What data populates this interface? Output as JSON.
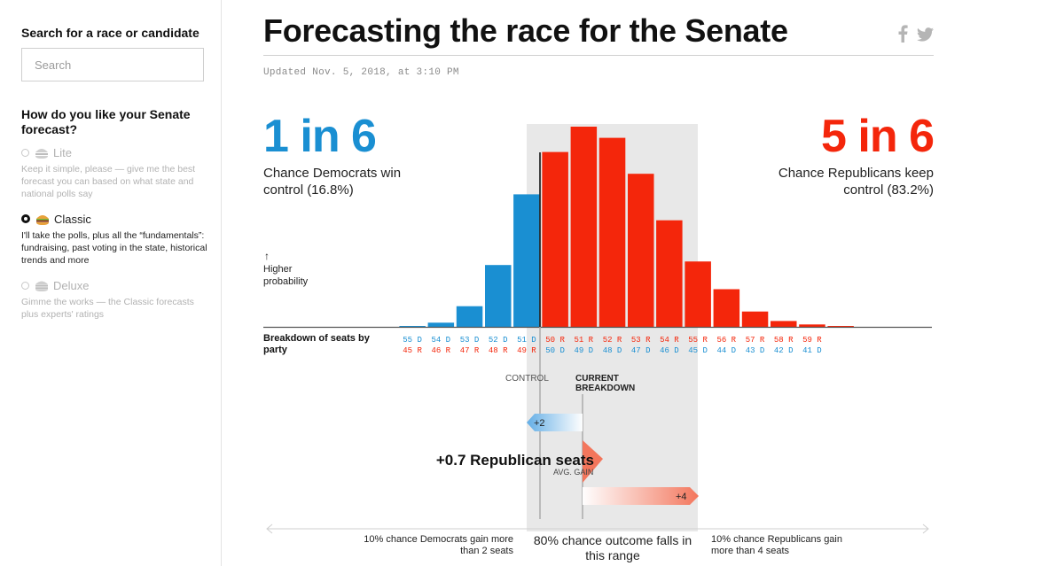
{
  "sidebar": {
    "search_title": "Search for a race or candidate",
    "search_placeholder": "Search",
    "mode_question": "How do you like your Senate forecast?",
    "options": [
      {
        "name": "Lite",
        "desc": "Keep it simple, please — give me the best forecast you can based on what state and national polls say",
        "selected": false,
        "icon": "burger-lite-icon"
      },
      {
        "name": "Classic",
        "desc": "I'll take the polls, plus all the “fundamentals”: fundraising, past voting in the state, historical trends and more",
        "selected": true,
        "icon": "burger-classic-icon"
      },
      {
        "name": "Deluxe",
        "desc": "Gimme the works — the Classic forecasts plus experts' ratings",
        "selected": false,
        "icon": "burger-deluxe-icon"
      }
    ]
  },
  "header": {
    "title": "Forecasting the race for the Senate",
    "updated": "Updated Nov. 5, 2018, at 3:10 PM",
    "share_icons": [
      "facebook-icon",
      "twitter-icon"
    ]
  },
  "odds": {
    "dem_headline": "1 in 6",
    "dem_text": "Chance Democrats win control (16.8%)",
    "rep_headline": "5 in 6",
    "rep_text": "Chance Republicans keep control (83.2%)"
  },
  "colors": {
    "democrat": "#1a8fd2",
    "republican": "#f4260b",
    "range_band": "#e8e8e8"
  },
  "chart_labels": {
    "prob_arrow": "↑",
    "prob_label": "Higher probability",
    "breakdown_label": "Breakdown of seats by party",
    "control": "CONTROL",
    "current_line1": "CURRENT",
    "current_line2": "BREAKDOWN",
    "dem_gain_label": "+2",
    "rep_gain_label": "+4",
    "avg_gain_headline": "+0.7 Republican seats",
    "avg_gain_sub": "AVG. GAIN"
  },
  "range": {
    "left": "10% chance Democrats gain more than 2 seats",
    "center": "80% chance outcome falls in this range",
    "right": "10% chance Republicans gain more than 4 seats"
  },
  "chart_data": {
    "type": "bar",
    "title": "Breakdown of seats by party",
    "ylabel": "Higher probability",
    "categories": [
      {
        "top": "55 D",
        "bottom": "45 R",
        "party": "D"
      },
      {
        "top": "54 D",
        "bottom": "46 R",
        "party": "D"
      },
      {
        "top": "53 D",
        "bottom": "47 R",
        "party": "D"
      },
      {
        "top": "52 D",
        "bottom": "48 R",
        "party": "D"
      },
      {
        "top": "51 D",
        "bottom": "49 R",
        "party": "D"
      },
      {
        "top": "50 R",
        "bottom": "50 D",
        "party": "R"
      },
      {
        "top": "51 R",
        "bottom": "49 D",
        "party": "R"
      },
      {
        "top": "52 R",
        "bottom": "48 D",
        "party": "R"
      },
      {
        "top": "53 R",
        "bottom": "47 D",
        "party": "R"
      },
      {
        "top": "54 R",
        "bottom": "46 D",
        "party": "R"
      },
      {
        "top": "55 R",
        "bottom": "45 D",
        "party": "R"
      },
      {
        "top": "56 R",
        "bottom": "44 D",
        "party": "R"
      },
      {
        "top": "57 R",
        "bottom": "43 D",
        "party": "R"
      },
      {
        "top": "58 R",
        "bottom": "42 D",
        "party": "R"
      },
      {
        "top": "59 R",
        "bottom": "41 D",
        "party": "R"
      },
      {
        "top": "",
        "bottom": "",
        "party": "R"
      }
    ],
    "values": [
      0.1,
      0.7,
      3.5,
      10.5,
      22.5,
      29.7,
      34.0,
      32.1,
      26.0,
      18.1,
      11.1,
      6.4,
      2.6,
      1.0,
      0.4,
      0.15
    ],
    "ymax": 34.0,
    "range_band": {
      "from_index": 4,
      "to_index": 9
    },
    "control_line_after_index": 4,
    "current_breakdown_index": 6
  }
}
